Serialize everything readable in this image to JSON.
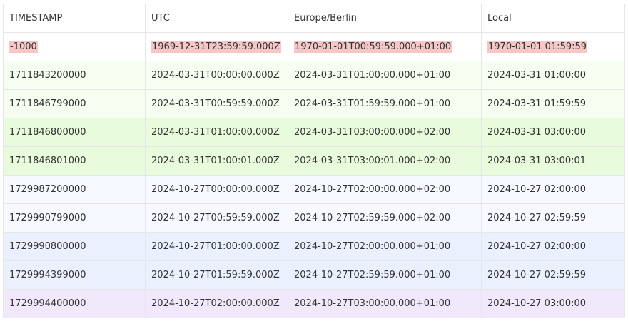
{
  "table": {
    "header": [
      "TIMESTAMP",
      "UTC",
      "Europe/Berlin",
      "Local"
    ],
    "rows": [
      [
        "-1000",
        "1969-12-31T23:59:59.000Z",
        "1970-01-01T00:59:59.000+01:00",
        "1970-01-01 01:59:59"
      ],
      [
        "1711843200000",
        "2024-03-31T00:00:00.000Z",
        "2024-03-31T01:00:00.000+01:00",
        "2024-03-31 01:00:00"
      ],
      [
        "1711846799000",
        "2024-03-31T00:59:59.000Z",
        "2024-03-31T01:59:59.000+01:00",
        "2024-03-31 01:59:59"
      ],
      [
        "1711846800000",
        "2024-03-31T01:00:00.000Z",
        "2024-03-31T03:00:00.000+02:00",
        "2024-03-31 03:00:00"
      ],
      [
        "1711846801000",
        "2024-03-31T01:00:01.000Z",
        "2024-03-31T03:00:01.000+02:00",
        "2024-03-31 03:00:01"
      ],
      [
        "1729987200000",
        "2024-10-27T00:00:00.000Z",
        "2024-10-27T02:00:00.000+02:00",
        "2024-10-27 02:00:00"
      ],
      [
        "1729990799000",
        "2024-10-27T00:59:59.000Z",
        "2024-10-27T02:59:59.000+02:00",
        "2024-10-27 02:59:59"
      ],
      [
        "1729990800000",
        "2024-10-27T01:00:00.000Z",
        "2024-10-27T02:00:00.000+01:00",
        "2024-10-27 02:00:00"
      ],
      [
        "1729994399000",
        "2024-10-27T01:59:59.000Z",
        "2024-10-27T02:59:59.000+01:00",
        "2024-10-27 02:59:59"
      ],
      [
        "1729994400000",
        "2024-10-27T02:00:00.000Z",
        "2024-10-27T03:00:00.000+01:00",
        "2024-10-27 03:00:00"
      ]
    ]
  }
}
